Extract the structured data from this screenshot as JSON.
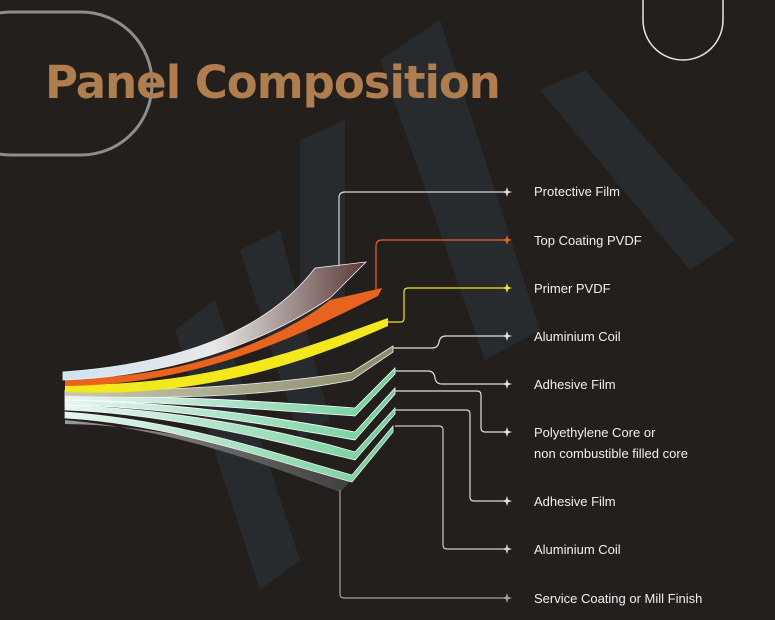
{
  "title": "Panel Composition",
  "watermark": "WIA",
  "colors": {
    "background": "#231f1d",
    "title": "#b07d4e",
    "orange": "#e8641e",
    "yellow": "#f2e81c",
    "line": "#c8c8c8",
    "green": "#7fd9a6"
  },
  "layers": [
    {
      "label": "Protective Film",
      "color": "#d8d8d8"
    },
    {
      "label": "Top Coating PVDF",
      "color": "#e8641e"
    },
    {
      "label": "Primer PVDF",
      "color": "#f2e81c"
    },
    {
      "label": "Aluminium Coil",
      "color": "#e0e0e0"
    },
    {
      "label": "Adhesive Film",
      "color": "#e0e0e0"
    },
    {
      "label": "Polyethylene Core or",
      "label2": "non combustible filled core",
      "color": "#e0e0e0"
    },
    {
      "label": "Adhesive Film",
      "color": "#e0e0e0"
    },
    {
      "label": "Aluminium Coil",
      "color": "#d0d0d0"
    },
    {
      "label": "Service Coating or Mill Finish",
      "color": "#a0a0a0"
    }
  ]
}
